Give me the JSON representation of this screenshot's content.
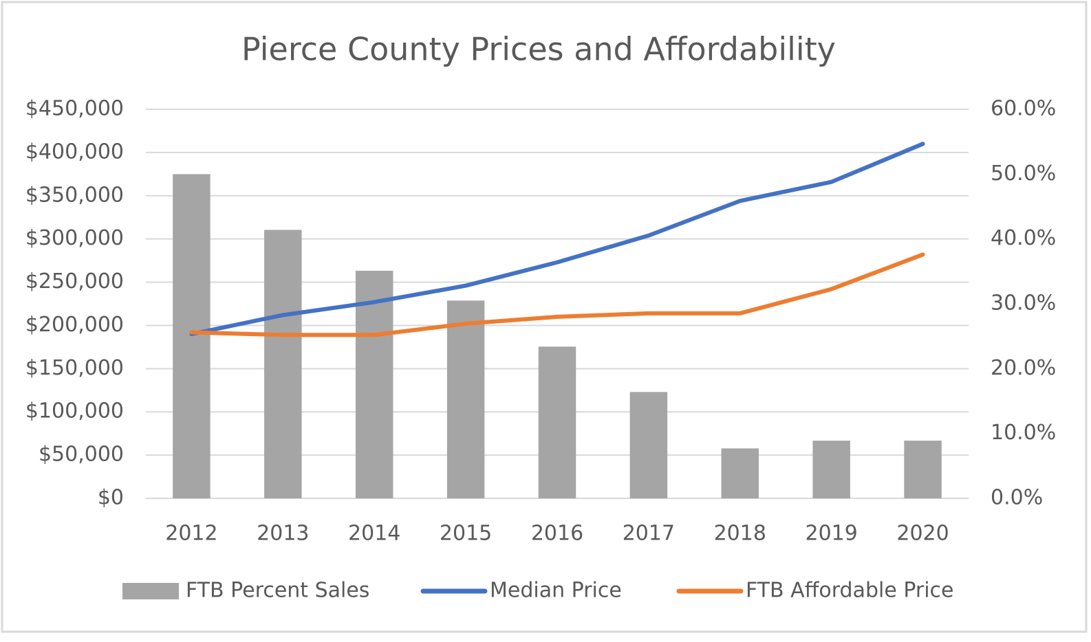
{
  "chart_data": {
    "type": "combo",
    "title": "Pierce County Prices and Affordability",
    "categories": [
      "2012",
      "2013",
      "2014",
      "2015",
      "2016",
      "2017",
      "2018",
      "2019",
      "2020"
    ],
    "series": [
      {
        "name": "FTB Percent Sales",
        "type": "bar",
        "axis": "y2",
        "color": "#a5a5a5",
        "values": [
          50.0,
          41.4,
          35.1,
          30.5,
          23.4,
          16.4,
          7.7,
          8.9,
          8.9
        ]
      },
      {
        "name": "Median Price",
        "type": "line",
        "axis": "y",
        "color": "#4472c4",
        "values": [
          190000,
          212000,
          227000,
          246000,
          273000,
          304000,
          344000,
          366000,
          410000
        ]
      },
      {
        "name": "FTB Affordable Price",
        "type": "line",
        "axis": "y",
        "color": "#ed7d31",
        "values": [
          192000,
          189000,
          189000,
          202000,
          210000,
          214000,
          214000,
          242000,
          282000
        ]
      }
    ],
    "ylim": [
      0,
      450000
    ],
    "yticks": [
      {
        "value": 0,
        "label": "$0"
      },
      {
        "value": 50000,
        "label": "$50,000"
      },
      {
        "value": 100000,
        "label": "$100,000"
      },
      {
        "value": 150000,
        "label": "$150,000"
      },
      {
        "value": 200000,
        "label": "$200,000"
      },
      {
        "value": 250000,
        "label": "$250,000"
      },
      {
        "value": 300000,
        "label": "$300,000"
      },
      {
        "value": 350000,
        "label": "$350,000"
      },
      {
        "value": 400000,
        "label": "$400,000"
      },
      {
        "value": 450000,
        "label": "$450,000"
      }
    ],
    "y2lim": [
      0,
      60
    ],
    "y2ticks": [
      {
        "value": 0,
        "label": "0.0%"
      },
      {
        "value": 10,
        "label": "10.0%"
      },
      {
        "value": 20,
        "label": "20.0%"
      },
      {
        "value": 30,
        "label": "30.0%"
      },
      {
        "value": 40,
        "label": "40.0%"
      },
      {
        "value": 50,
        "label": "50.0%"
      },
      {
        "value": 60,
        "label": "60.0%"
      }
    ],
    "grid": true,
    "legend": "bottom"
  }
}
